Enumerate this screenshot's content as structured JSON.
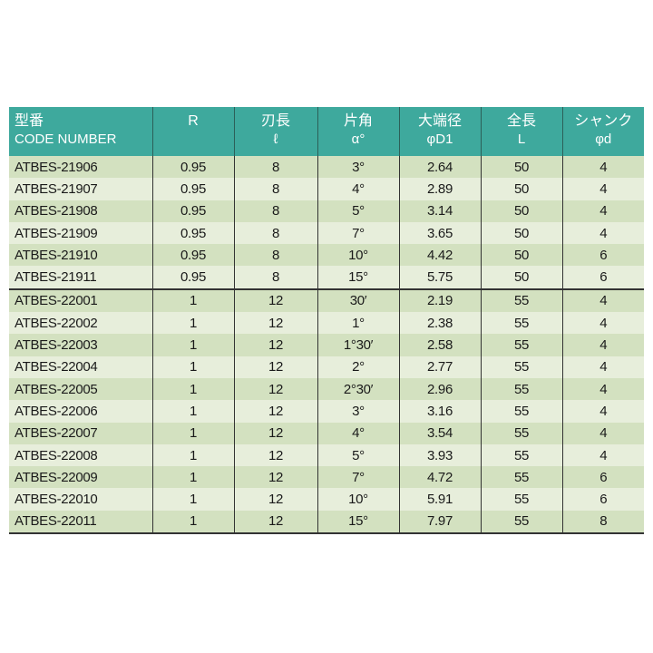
{
  "headers": [
    {
      "line1": "型番",
      "line2": "CODE NUMBER"
    },
    {
      "line1": "R",
      "line2": ""
    },
    {
      "line1": "刃長",
      "line2": "ℓ"
    },
    {
      "line1": "片角",
      "line2": "α°"
    },
    {
      "line1": "大端径",
      "line2": "φD1"
    },
    {
      "line1": "全長",
      "line2": "L"
    },
    {
      "line1": "シャンク",
      "line2": "φd"
    }
  ],
  "rows": [
    [
      "ATBES-21906",
      "0.95",
      "8",
      "3°",
      "2.64",
      "50",
      "4"
    ],
    [
      "ATBES-21907",
      "0.95",
      "8",
      "4°",
      "2.89",
      "50",
      "4"
    ],
    [
      "ATBES-21908",
      "0.95",
      "8",
      "5°",
      "3.14",
      "50",
      "4"
    ],
    [
      "ATBES-21909",
      "0.95",
      "8",
      "7°",
      "3.65",
      "50",
      "4"
    ],
    [
      "ATBES-21910",
      "0.95",
      "8",
      "10°",
      "4.42",
      "50",
      "6"
    ],
    [
      "ATBES-21911",
      "0.95",
      "8",
      "15°",
      "5.75",
      "50",
      "6"
    ],
    [
      "ATBES-22001",
      "1",
      "12",
      "30′",
      "2.19",
      "55",
      "4"
    ],
    [
      "ATBES-22002",
      "1",
      "12",
      "1°",
      "2.38",
      "55",
      "4"
    ],
    [
      "ATBES-22003",
      "1",
      "12",
      "1°30′",
      "2.58",
      "55",
      "4"
    ],
    [
      "ATBES-22004",
      "1",
      "12",
      "2°",
      "2.77",
      "55",
      "4"
    ],
    [
      "ATBES-22005",
      "1",
      "12",
      "2°30′",
      "2.96",
      "55",
      "4"
    ],
    [
      "ATBES-22006",
      "1",
      "12",
      "3°",
      "3.16",
      "55",
      "4"
    ],
    [
      "ATBES-22007",
      "1",
      "12",
      "4°",
      "3.54",
      "55",
      "4"
    ],
    [
      "ATBES-22008",
      "1",
      "12",
      "5°",
      "3.93",
      "55",
      "4"
    ],
    [
      "ATBES-22009",
      "1",
      "12",
      "7°",
      "4.72",
      "55",
      "6"
    ],
    [
      "ATBES-22010",
      "1",
      "12",
      "10°",
      "5.91",
      "55",
      "6"
    ],
    [
      "ATBES-22011",
      "1",
      "12",
      "15°",
      "7.97",
      "55",
      "8"
    ]
  ],
  "colors": {
    "header": "#3ea99d",
    "row_odd": "#d3e1c0",
    "row_even": "#e7eedb"
  }
}
